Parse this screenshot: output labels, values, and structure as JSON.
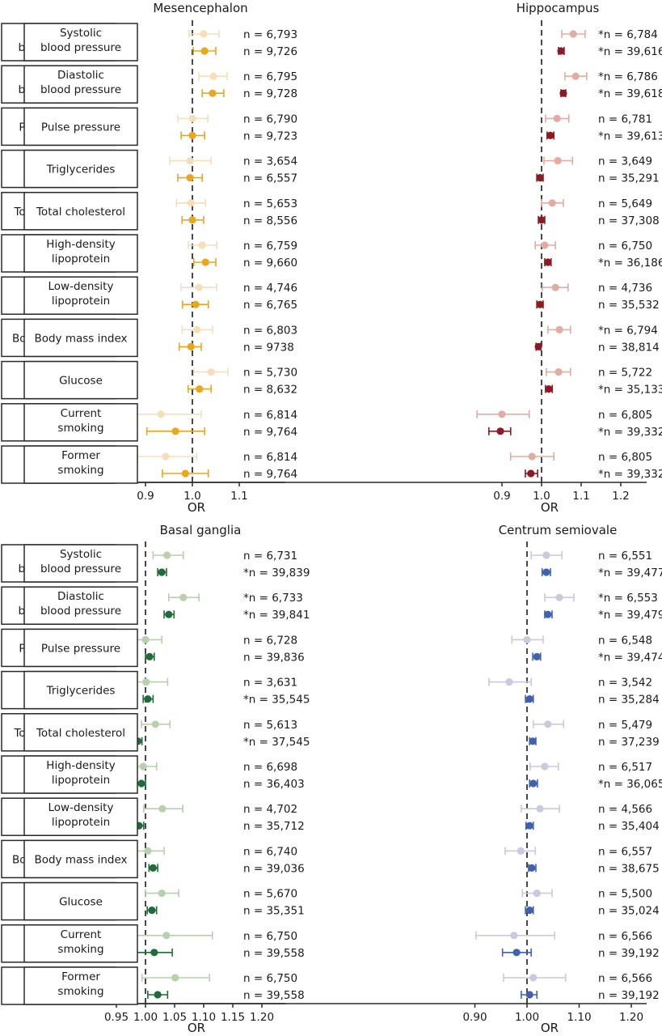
{
  "chart_data": [
    {
      "type": "forest",
      "title": "Mesencephalon",
      "xlabel": "OR",
      "xlim": [
        0.84,
        1.2
      ],
      "xticks": [
        0.9,
        1.0,
        1.1
      ],
      "xtick_labels": [
        "0.9",
        "1.0",
        "1.1"
      ],
      "reference_line": 1.0,
      "colors": {
        "light": "#f5dfb8",
        "dark": "#e8a71c"
      },
      "rows": [
        {
          "label": [
            "Systolic",
            "blood pressure"
          ],
          "light": {
            "or": 1.024,
            "lo": 0.993,
            "hi": 1.057,
            "n": "n = 6,793"
          },
          "dark": {
            "or": 1.026,
            "lo": 1.002,
            "hi": 1.05,
            "n": "n = 9,726"
          }
        },
        {
          "label": [
            "Diastolic",
            "blood pressure"
          ],
          "light": {
            "or": 1.045,
            "lo": 1.014,
            "hi": 1.074,
            "n": "n = 6,795"
          },
          "dark": {
            "or": 1.043,
            "lo": 1.021,
            "hi": 1.067,
            "n": "n = 9,728"
          }
        },
        {
          "label": [
            "Pulse pressure"
          ],
          "light": {
            "or": 1.0,
            "lo": 0.969,
            "hi": 1.033,
            "n": "n = 6,790"
          },
          "dark": {
            "or": 1.0,
            "lo": 0.976,
            "hi": 1.026,
            "n": "n = 9,723"
          }
        },
        {
          "label": [
            "Triglycerides"
          ],
          "light": {
            "or": 0.995,
            "lo": 0.952,
            "hi": 1.04,
            "n": "n = 3,654"
          },
          "dark": {
            "or": 0.995,
            "lo": 0.969,
            "hi": 1.021,
            "n": "n = 6,557"
          }
        },
        {
          "label": [
            "Total cholesterol"
          ],
          "light": {
            "or": 0.997,
            "lo": 0.966,
            "hi": 1.028,
            "n": "n = 5,653"
          },
          "dark": {
            "or": 1.0,
            "lo": 0.978,
            "hi": 1.024,
            "n": "n = 8,556"
          }
        },
        {
          "label": [
            "High-density",
            "lipoprotein"
          ],
          "light": {
            "or": 1.021,
            "lo": 0.991,
            "hi": 1.052,
            "n": "n = 6,759"
          },
          "dark": {
            "or": 1.028,
            "lo": 1.003,
            "hi": 1.05,
            "n": "n = 9,660"
          }
        },
        {
          "label": [
            "Low-density",
            "lipoprotein"
          ],
          "light": {
            "or": 1.014,
            "lo": 0.976,
            "hi": 1.052,
            "n": "n = 4,746"
          },
          "dark": {
            "or": 1.007,
            "lo": 0.979,
            "hi": 1.034,
            "n": "n = 6,765"
          }
        },
        {
          "label": [
            "Body mass index"
          ],
          "light": {
            "or": 1.01,
            "lo": 0.978,
            "hi": 1.043,
            "n": "n = 6,803"
          },
          "dark": {
            "or": 0.997,
            "lo": 0.972,
            "hi": 1.019,
            "n": "n = 9738"
          }
        },
        {
          "label": [
            "Glucose"
          ],
          "light": {
            "or": 1.04,
            "lo": 1.003,
            "hi": 1.076,
            "n": "n = 5,730"
          },
          "dark": {
            "or": 1.015,
            "lo": 0.991,
            "hi": 1.04,
            "n": "n = 8,632"
          }
        },
        {
          "label": [
            "Current",
            "smoking"
          ],
          "light": {
            "or": 0.933,
            "lo": 0.853,
            "hi": 1.019,
            "n": "n = 6,814"
          },
          "dark": {
            "or": 0.964,
            "lo": 0.903,
            "hi": 1.026,
            "n": "n = 9,764"
          }
        },
        {
          "label": [
            "Former",
            "smoking"
          ],
          "light": {
            "or": 0.943,
            "lo": 0.883,
            "hi": 1.009,
            "n": "n = 6,814"
          },
          "dark": {
            "or": 0.985,
            "lo": 0.936,
            "hi": 1.034,
            "n": "n = 9,764"
          }
        }
      ]
    },
    {
      "type": "forest",
      "title": "Hippocampus",
      "xlabel": "OR",
      "xlim": [
        0.82,
        1.265
      ],
      "xticks": [
        0.9,
        1.0,
        1.1,
        1.2
      ],
      "xtick_labels": [
        "0.9",
        "1.0",
        "1.1",
        "1.2"
      ],
      "reference_line": 1.0,
      "colors": {
        "light": "#e3aca1",
        "dark": "#8b1a22"
      },
      "rows": [
        {
          "label": [
            "Systolic",
            "blood pressure"
          ],
          "light": {
            "or": 1.08,
            "lo": 1.051,
            "hi": 1.11,
            "n": "*n = 6,784"
          },
          "dark": {
            "or": 1.049,
            "lo": 1.043,
            "hi": 1.057,
            "n": "*n = 39,616"
          }
        },
        {
          "label": [
            "Diastolic",
            "blood pressure"
          ],
          "light": {
            "or": 1.086,
            "lo": 1.059,
            "hi": 1.114,
            "n": "*n = 6,786"
          },
          "dark": {
            "or": 1.055,
            "lo": 1.049,
            "hi": 1.061,
            "n": "*n = 39,618"
          }
        },
        {
          "label": [
            "Pulse pressure"
          ],
          "light": {
            "or": 1.039,
            "lo": 1.01,
            "hi": 1.069,
            "n": "n = 6,781"
          },
          "dark": {
            "or": 1.022,
            "lo": 1.014,
            "hi": 1.031,
            "n": "*n = 39,613"
          }
        },
        {
          "label": [
            "Triglycerides"
          ],
          "light": {
            "or": 1.041,
            "lo": 1.006,
            "hi": 1.078,
            "n": "n = 3,649"
          },
          "dark": {
            "or": 0.996,
            "lo": 0.988,
            "hi": 1.004,
            "n": "n = 35,291"
          }
        },
        {
          "label": [
            "Total cholesterol"
          ],
          "light": {
            "or": 1.027,
            "lo": 1.0,
            "hi": 1.055,
            "n": "n = 5,649"
          },
          "dark": {
            "or": 1.0,
            "lo": 0.992,
            "hi": 1.008,
            "n": "n = 37,308"
          }
        },
        {
          "label": [
            "High-density",
            "lipoprotein"
          ],
          "light": {
            "or": 1.008,
            "lo": 0.984,
            "hi": 1.035,
            "n": "n = 6,750"
          },
          "dark": {
            "or": 1.016,
            "lo": 1.008,
            "hi": 1.024,
            "n": "*n = 36,186"
          }
        },
        {
          "label": [
            "Low-density",
            "lipoprotein"
          ],
          "light": {
            "or": 1.035,
            "lo": 1.002,
            "hi": 1.067,
            "n": "n = 4,736"
          },
          "dark": {
            "or": 0.996,
            "lo": 0.988,
            "hi": 1.004,
            "n": "n = 35,532"
          }
        },
        {
          "label": [
            "Body mass index"
          ],
          "light": {
            "or": 1.045,
            "lo": 1.016,
            "hi": 1.073,
            "n": "*n = 6,794"
          },
          "dark": {
            "or": 0.992,
            "lo": 0.986,
            "hi": 0.998,
            "n": "n = 38,814"
          }
        },
        {
          "label": [
            "Glucose"
          ],
          "light": {
            "or": 1.043,
            "lo": 1.012,
            "hi": 1.073,
            "n": "n = 5,722"
          },
          "dark": {
            "or": 1.018,
            "lo": 1.01,
            "hi": 1.027,
            "n": "*n = 35,133"
          }
        },
        {
          "label": [
            "Current",
            "smoking"
          ],
          "light": {
            "or": 0.9,
            "lo": 0.837,
            "hi": 0.969,
            "n": "n = 6,805"
          },
          "dark": {
            "or": 0.896,
            "lo": 0.867,
            "hi": 0.922,
            "n": "*n = 39,332"
          }
        },
        {
          "label": [
            "Former",
            "smoking"
          ],
          "light": {
            "or": 0.976,
            "lo": 0.922,
            "hi": 1.031,
            "n": "n = 6,805"
          },
          "dark": {
            "or": 0.973,
            "lo": 0.959,
            "hi": 0.99,
            "n": "*n = 39,332"
          }
        }
      ]
    },
    {
      "type": "forest",
      "title": "Basal ganglia",
      "xlabel": "OR",
      "xlim": [
        0.95,
        1.24
      ],
      "xticks": [
        0.95,
        1.0,
        1.05,
        1.1,
        1.15,
        1.2
      ],
      "xtick_labels": [
        "0.95",
        "1.00",
        "1.05",
        "1.10",
        "1.15",
        "1.20"
      ],
      "reference_line": 1.0,
      "colors": {
        "light": "#b7d1ad",
        "dark": "#1f6b3a"
      },
      "rows": [
        {
          "label": [
            "Systolic",
            "blood pressure"
          ],
          "light": {
            "or": 1.037,
            "lo": 1.013,
            "hi": 1.065,
            "n": "n = 6,731"
          },
          "dark": {
            "or": 1.028,
            "lo": 1.021,
            "hi": 1.036,
            "n": "*n = 39,839"
          }
        },
        {
          "label": [
            "Diastolic",
            "blood pressure"
          ],
          "light": {
            "or": 1.065,
            "lo": 1.04,
            "hi": 1.092,
            "n": "*n = 6,733"
          },
          "dark": {
            "or": 1.04,
            "lo": 1.032,
            "hi": 1.049,
            "n": "*n = 39,841"
          }
        },
        {
          "label": [
            "Pulse pressure"
          ],
          "light": {
            "or": 1.0,
            "lo": 0.975,
            "hi": 1.028,
            "n": "n = 6,728"
          },
          "dark": {
            "or": 1.007,
            "lo": 1.0,
            "hi": 1.015,
            "n": "n = 39,836"
          }
        },
        {
          "label": [
            "Triglycerides"
          ],
          "light": {
            "or": 1.001,
            "lo": 0.967,
            "hi": 1.038,
            "n": "n = 3,631"
          },
          "dark": {
            "or": 1.004,
            "lo": 0.996,
            "hi": 1.013,
            "n": "*n = 35,545"
          }
        },
        {
          "label": [
            "Total cholesterol"
          ],
          "light": {
            "or": 1.017,
            "lo": 0.993,
            "hi": 1.042,
            "n": "n = 5,613"
          },
          "dark": {
            "or": 0.987,
            "lo": 0.979,
            "hi": 0.994,
            "n": "*n = 37,545"
          }
        },
        {
          "label": [
            "High-density",
            "lipoprotein"
          ],
          "light": {
            "or": 0.996,
            "lo": 0.972,
            "hi": 1.019,
            "n": "n = 6,698"
          },
          "dark": {
            "or": 0.993,
            "lo": 0.985,
            "hi": 1.0,
            "n": "n = 36,403"
          }
        },
        {
          "label": [
            "Low-density",
            "lipoprotein"
          ],
          "light": {
            "or": 1.029,
            "lo": 0.997,
            "hi": 1.064,
            "n": "n = 4,702"
          },
          "dark": {
            "or": 0.989,
            "lo": 0.981,
            "hi": 0.997,
            "n": "n = 35,712"
          }
        },
        {
          "label": [
            "Body mass index"
          ],
          "light": {
            "or": 1.004,
            "lo": 0.978,
            "hi": 1.032,
            "n": "n = 6,740"
          },
          "dark": {
            "or": 1.013,
            "lo": 1.006,
            "hi": 1.021,
            "n": "n = 39,036"
          }
        },
        {
          "label": [
            "Glucose"
          ],
          "light": {
            "or": 1.028,
            "lo": 1.0,
            "hi": 1.057,
            "n": "n = 5,670"
          },
          "dark": {
            "or": 1.011,
            "lo": 1.003,
            "hi": 1.019,
            "n": "n = 35,351"
          }
        },
        {
          "label": [
            "Current",
            "smoking"
          ],
          "light": {
            "or": 1.036,
            "lo": 0.963,
            "hi": 1.115,
            "n": "n = 6,750"
          },
          "dark": {
            "or": 1.015,
            "lo": 0.985,
            "hi": 1.046,
            "n": "n = 39,558"
          }
        },
        {
          "label": [
            "Former",
            "smoking"
          ],
          "light": {
            "or": 1.051,
            "lo": 0.994,
            "hi": 1.11,
            "n": "n = 6,750"
          },
          "dark": {
            "or": 1.021,
            "lo": 1.004,
            "hi": 1.038,
            "n": "n = 39,558"
          }
        }
      ]
    },
    {
      "type": "forest",
      "title": "Centrum semiovale",
      "xlabel": "OR",
      "xlim": [
        0.885,
        1.23
      ],
      "xticks": [
        0.9,
        1.0,
        1.1,
        1.2
      ],
      "xtick_labels": [
        "0.90",
        "1.00",
        "1.10",
        "1.20"
      ],
      "reference_line": 1.0,
      "colors": {
        "light": "#c9c9e0",
        "dark": "#3f62b0"
      },
      "rows": [
        {
          "label": [
            "Systolic",
            "blood pressure"
          ],
          "light": {
            "or": 1.037,
            "lo": 1.008,
            "hi": 1.067,
            "n": "n = 6,551"
          },
          "dark": {
            "or": 1.037,
            "lo": 1.029,
            "hi": 1.045,
            "n": "*n = 39,477"
          }
        },
        {
          "label": [
            "Diastolic",
            "blood pressure"
          ],
          "light": {
            "or": 1.062,
            "lo": 1.034,
            "hi": 1.09,
            "n": "*n = 6,553"
          },
          "dark": {
            "or": 1.04,
            "lo": 1.034,
            "hi": 1.048,
            "n": "*n = 39,479"
          }
        },
        {
          "label": [
            "Pulse pressure"
          ],
          "light": {
            "or": 1.0,
            "lo": 0.971,
            "hi": 1.031,
            "n": "n = 6,548"
          },
          "dark": {
            "or": 1.019,
            "lo": 1.011,
            "hi": 1.026,
            "n": "*n = 39,474"
          }
        },
        {
          "label": [
            "Triglycerides"
          ],
          "light": {
            "or": 0.966,
            "lo": 0.927,
            "hi": 1.008,
            "n": "n = 3,542"
          },
          "dark": {
            "or": 1.005,
            "lo": 0.997,
            "hi": 1.012,
            "n": "n = 35,284"
          }
        },
        {
          "label": [
            "Total cholesterol"
          ],
          "light": {
            "or": 1.04,
            "lo": 1.012,
            "hi": 1.07,
            "n": "n = 5,479"
          },
          "dark": {
            "or": 1.011,
            "lo": 1.005,
            "hi": 1.017,
            "n": "n = 37,239"
          }
        },
        {
          "label": [
            "High-density",
            "lipoprotein"
          ],
          "light": {
            "or": 1.034,
            "lo": 1.006,
            "hi": 1.06,
            "n": "n = 6,517"
          },
          "dark": {
            "or": 1.012,
            "lo": 1.005,
            "hi": 1.02,
            "n": "*n = 36,065"
          }
        },
        {
          "label": [
            "Low-density",
            "lipoprotein"
          ],
          "light": {
            "or": 1.025,
            "lo": 0.989,
            "hi": 1.062,
            "n": "n = 4,566"
          },
          "dark": {
            "or": 1.005,
            "lo": 0.998,
            "hi": 1.012,
            "n": "n = 35,404"
          }
        },
        {
          "label": [
            "Body mass index"
          ],
          "light": {
            "or": 0.988,
            "lo": 0.958,
            "hi": 1.016,
            "n": "n = 6,557"
          },
          "dark": {
            "or": 1.009,
            "lo": 1.003,
            "hi": 1.017,
            "n": "n = 38,675"
          }
        },
        {
          "label": [
            "Glucose"
          ],
          "light": {
            "or": 1.019,
            "lo": 0.991,
            "hi": 1.048,
            "n": "n = 5,500"
          },
          "dark": {
            "or": 1.005,
            "lo": 0.997,
            "hi": 1.012,
            "n": "n = 35,024"
          }
        },
        {
          "label": [
            "Current",
            "smoking"
          ],
          "light": {
            "or": 0.975,
            "lo": 0.902,
            "hi": 1.053,
            "n": "n = 6,566"
          },
          "dark": {
            "or": 0.98,
            "lo": 0.953,
            "hi": 1.008,
            "n": "n = 39,192"
          }
        },
        {
          "label": [
            "Former",
            "smoking"
          ],
          "light": {
            "or": 1.012,
            "lo": 0.955,
            "hi": 1.074,
            "n": "n = 6,566"
          },
          "dark": {
            "or": 1.005,
            "lo": 0.989,
            "hi": 1.019,
            "n": "n = 39,192"
          }
        }
      ]
    }
  ]
}
